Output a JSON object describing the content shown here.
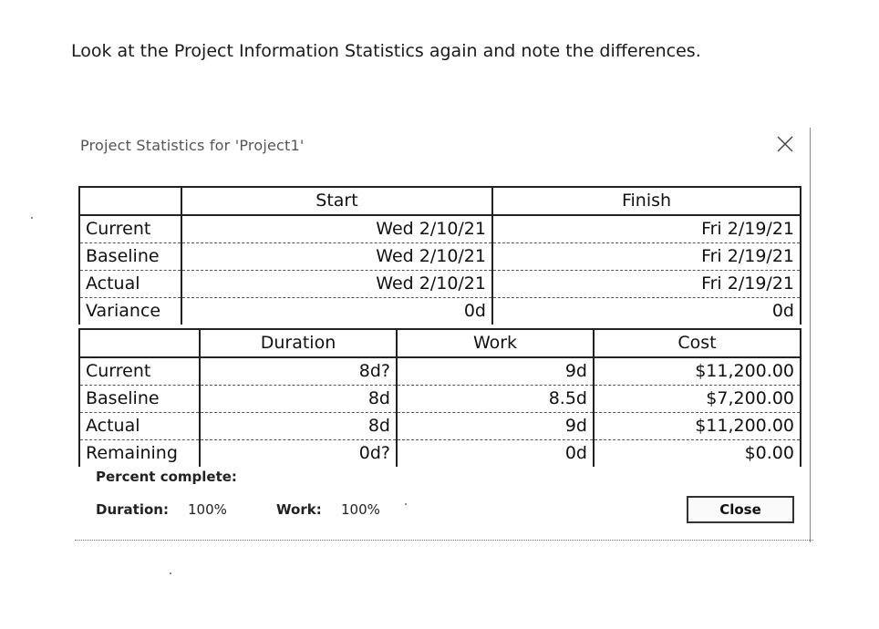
{
  "instruction": "Look at the Project Information Statistics again and note the differences.",
  "dialog": {
    "title": "Project Statistics for 'Project1'",
    "close_glyph": "X",
    "dates_table": {
      "headers": [
        "",
        "Start",
        "Finish"
      ],
      "rows": [
        {
          "label": "Current",
          "start": "Wed 2/10/21",
          "finish": "Fri 2/19/21"
        },
        {
          "label": "Baseline",
          "start": "Wed 2/10/21",
          "finish": "Fri 2/19/21"
        },
        {
          "label": "Actual",
          "start": "Wed 2/10/21",
          "finish": "Fri 2/19/21"
        },
        {
          "label": "Variance",
          "start": "0d",
          "finish": "0d"
        }
      ]
    },
    "summary_table": {
      "headers": [
        "",
        "Duration",
        "Work",
        "Cost"
      ],
      "rows": [
        {
          "label": "Current",
          "duration": "8d?",
          "work": "9d",
          "cost": "$11,200.00"
        },
        {
          "label": "Baseline",
          "duration": "8d",
          "work": "8.5d",
          "cost": "$7,200.00"
        },
        {
          "label": "Actual",
          "duration": "8d",
          "work": "9d",
          "cost": "$11,200.00"
        },
        {
          "label": "Remaining",
          "duration": "0d?",
          "work": "0d",
          "cost": "$0.00"
        }
      ]
    },
    "percent_complete": {
      "heading": "Percent complete:",
      "duration_label": "Duration:",
      "duration_value": "100%",
      "work_label": "Work:",
      "work_value": "100%"
    },
    "close_button_label": "Close"
  }
}
